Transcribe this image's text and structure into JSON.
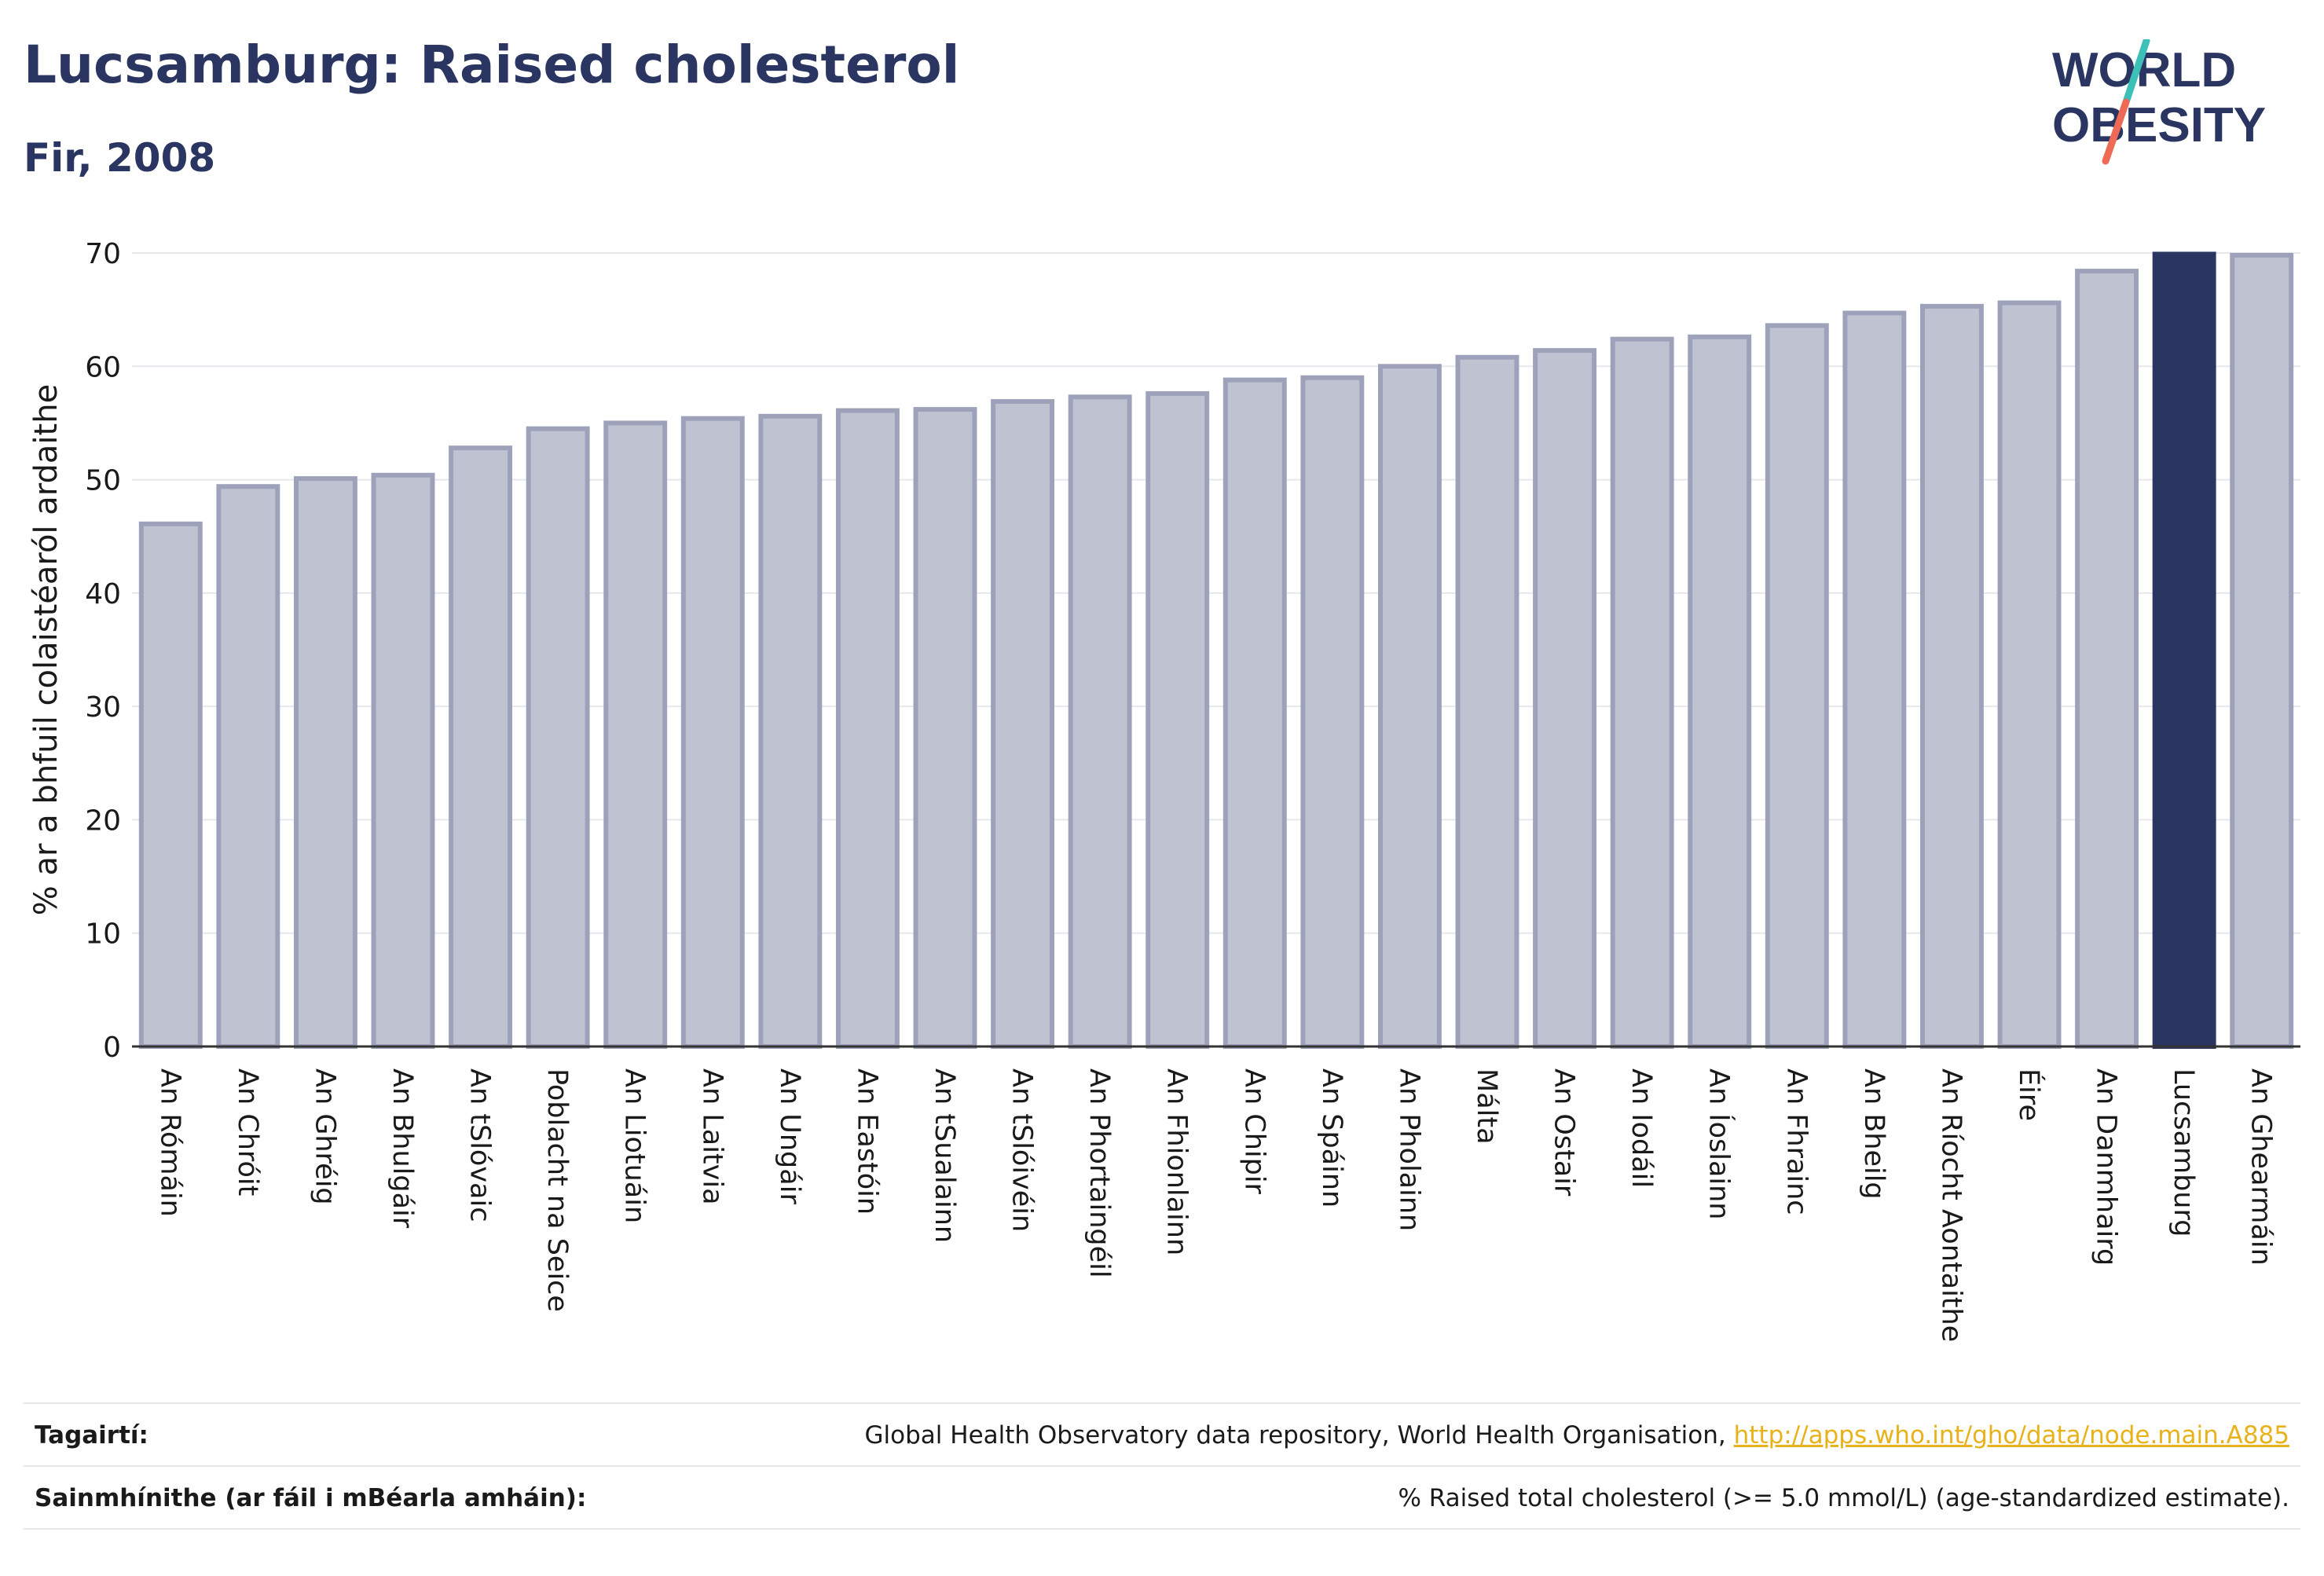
{
  "header": {
    "title": "Lucsamburg: Raised cholesterol",
    "subtitle": "Fir, 2008"
  },
  "logo": {
    "line1": "W",
    "line1b": "RLD",
    "line2": "BESITY",
    "text": "WORLD OBESITY",
    "colors": {
      "text": "#2a3561",
      "slash_top": "#3cc0b8",
      "slash_bottom": "#ee6a55"
    }
  },
  "chart_data": {
    "type": "bar",
    "title": "Lucsamburg: Raised cholesterol",
    "subtitle": "Fir, 2008",
    "xlabel": "",
    "ylabel": "% ar a bhfuil colaistéaról ardaithe",
    "ylim": [
      0,
      70
    ],
    "yticks": [
      0,
      10,
      20,
      30,
      40,
      50,
      60,
      70
    ],
    "grid": true,
    "highlight": "Lucsamburg",
    "colors": {
      "bar": "#bfc3d1",
      "bar_edge": "#9da2ba",
      "highlight": "#2a3561",
      "grid": "#e6e8ee",
      "axis": "#333333"
    },
    "categories": [
      "An Rómáin",
      "An Chróit",
      "An Ghréig",
      "An Bhulgáir",
      "An tSlóvaic",
      "Poblacht na Seice",
      "An Liotuáin",
      "An Laitvia",
      "An Ungáir",
      "An Eastóin",
      "An tSualainn",
      "An tSlóivéin",
      "An Phortaingéil",
      "An Fhionlainn",
      "An Chipir",
      "An Spáinn",
      "An Pholainn",
      "Málta",
      "An Ostair",
      "An Iodáil",
      "An Íoslainn",
      "An Fhrainc",
      "An Bheilg",
      "An Ríocht Aontaithe",
      "Éire",
      "An Danmhairg",
      "Lucsamburg",
      "An Ghearmáin"
    ],
    "categories_display": [
      "An Rómáin",
      "An Chróit",
      "An Ghréig",
      "An Bhulgáir",
      "An tSlóvaic",
      "Poblacht na Seice",
      "An Liotuáin",
      "An Laitvia",
      "An Ungáir",
      "An Eastóin",
      "An tSualainn",
      "An tSlóivéin",
      "An Phortaingéil",
      "An Fhionlainn",
      "An Chipir",
      "An Spáinn",
      "An Pholainn",
      "Málta",
      "An Ostair",
      "An Iodáil",
      "An Íoslainn",
      "An Fhrainc",
      "An Bheilg",
      "An Ríocht Aontaithe",
      "Éire",
      "An Danmhairg",
      "Lucsamburg",
      "An Ghearmáin"
    ],
    "values": [
      46.1,
      49.4,
      50.1,
      50.4,
      52.8,
      54.5,
      55.0,
      55.4,
      55.6,
      56.1,
      56.2,
      56.9,
      57.3,
      57.6,
      58.8,
      59.0,
      60.0,
      60.8,
      61.4,
      62.4,
      62.6,
      63.6,
      64.7,
      65.3,
      65.6,
      68.4,
      69.9,
      69.8
    ]
  },
  "footer": {
    "references_label": "Tagairtí:",
    "references_text": "Global Health Observatory data repository, World Health Organisation, ",
    "references_link": "http://apps.who.int/gho/data/node.main.A885",
    "definitions_label": "Sainmhínithe (ar fáil i mBéarla amháin):",
    "definitions_text": "% Raised total cholesterol (>= 5.0 mmol/L) (age-standardized estimate)."
  }
}
